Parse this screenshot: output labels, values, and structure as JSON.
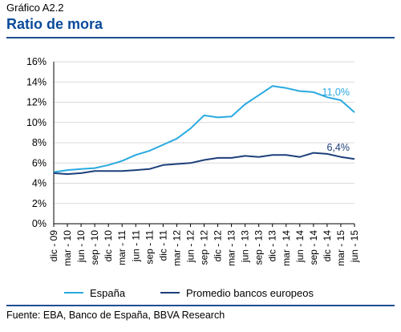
{
  "header": {
    "kicker": "Gráfico A2.2",
    "title": "Ratio de mora"
  },
  "footer": {
    "source": "Fuente: EBA, Banco de España, BBVA Research"
  },
  "colors": {
    "espana": "#29a9e0",
    "europa": "#1d3f7a",
    "title": "#0a4a9a",
    "grid": "#d9d9d9"
  },
  "chart_data": {
    "type": "line",
    "title": "Ratio de mora",
    "xlabel": "",
    "ylabel": "",
    "ylim": [
      0,
      16
    ],
    "yticks": [
      "0%",
      "2%",
      "4%",
      "6%",
      "8%",
      "10%",
      "12%",
      "14%",
      "16%"
    ],
    "grid": true,
    "legend": "bottom",
    "categories": [
      "dic - 09",
      "mar - 10",
      "jun - 10",
      "sep - 10",
      "dic - 10",
      "mar - 11",
      "jun - 11",
      "sep - 11",
      "dic - 11",
      "mar - 12",
      "jun - 12",
      "sep - 12",
      "dic - 12",
      "mar - 13",
      "jun - 13",
      "sep - 13",
      "dic - 13",
      "mar - 14",
      "jun - 14",
      "sep - 14",
      "dic - 14",
      "mar - 15",
      "jun - 15"
    ],
    "series": [
      {
        "name": "España",
        "color": "#29a9e0",
        "values": [
          5.1,
          5.3,
          5.4,
          5.5,
          5.8,
          6.2,
          6.8,
          7.2,
          7.8,
          8.4,
          9.4,
          10.7,
          10.5,
          10.6,
          11.8,
          12.7,
          13.6,
          13.4,
          13.1,
          13.0,
          12.5,
          12.2,
          11.0
        ],
        "end_label": "11,0%"
      },
      {
        "name": "Promedio bancos europeos",
        "color": "#1d3f7a",
        "values": [
          5.0,
          4.9,
          5.0,
          5.2,
          5.2,
          5.2,
          5.3,
          5.4,
          5.8,
          5.9,
          6.0,
          6.3,
          6.5,
          6.5,
          6.7,
          6.6,
          6.8,
          6.8,
          6.6,
          7.0,
          6.9,
          6.6,
          6.4
        ],
        "end_label": "6,4%"
      }
    ]
  }
}
